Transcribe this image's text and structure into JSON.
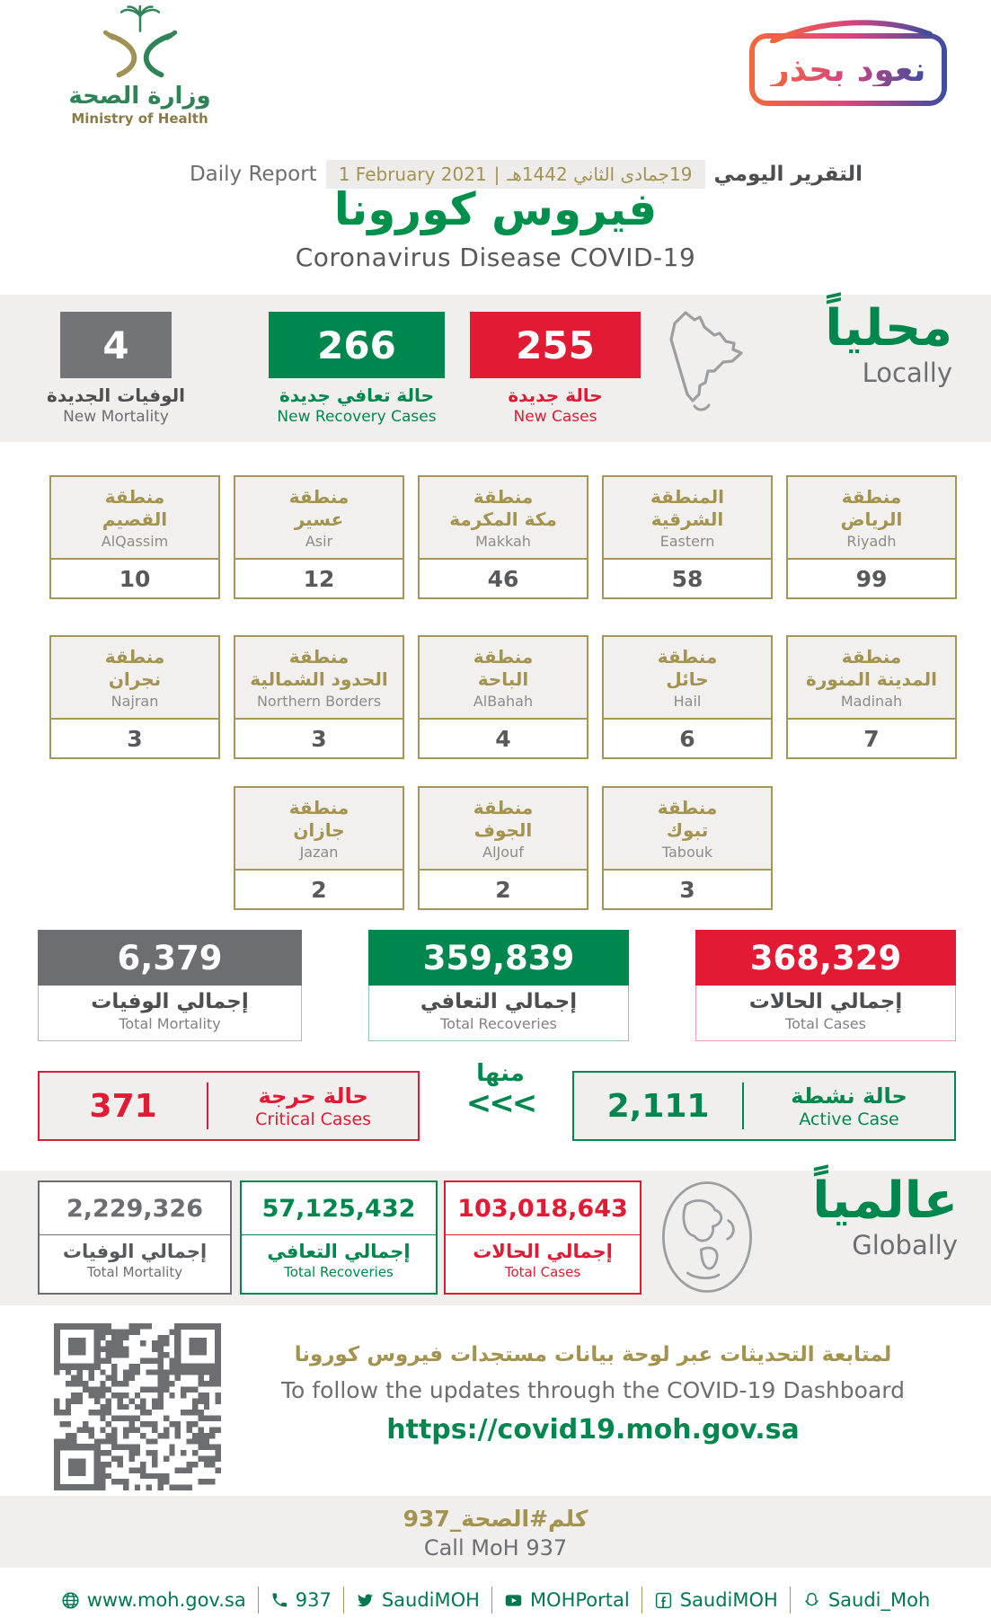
{
  "header": {
    "ministry_name_ar": "وزارة الصحة",
    "ministry_name_en": "Ministry of Health",
    "badge_text": "نعود بحذر",
    "report_label_ar": "التقرير اليومي",
    "report_date_hijri": "19جمادى الثاني 1442هـ",
    "report_date_sep": "|",
    "report_date_greg": "1 February 2021",
    "report_label_en": "Daily Report",
    "title_ar": "فيروس كورونا",
    "title_en": "Coronavirus Disease COVID-19"
  },
  "colors": {
    "green": "#00874e",
    "red": "#e21a33",
    "gray": "#737477",
    "olive": "#a5965a"
  },
  "locally": {
    "heading_ar": "محلياً",
    "heading_en": "Locally",
    "new_mortality": {
      "value": "4",
      "label_ar": "الوفيات الجديدة",
      "label_en": "New Mortality"
    },
    "new_recoveries": {
      "value": "266",
      "label_ar": "حالة تعافي جديدة",
      "label_en": "New Recovery Cases"
    },
    "new_cases": {
      "value": "255",
      "label_ar": "حالة جديدة",
      "label_en": "New Cases"
    }
  },
  "regions": {
    "rows": [
      {
        "cards": [
          {
            "ar1": "منطقة",
            "ar2": "القصيم",
            "en": "AlQassim",
            "value": "10"
          },
          {
            "ar1": "منطقة",
            "ar2": "عسير",
            "en": "Asir",
            "value": "12"
          },
          {
            "ar1": "منطقة",
            "ar2": "مكة المكرمة",
            "en": "Makkah",
            "value": "46"
          },
          {
            "ar1": "المنطقة",
            "ar2": "الشرقية",
            "en": "Eastern",
            "value": "58"
          },
          {
            "ar1": "منطقة",
            "ar2": "الرياض",
            "en": "Riyadh",
            "value": "99"
          }
        ]
      },
      {
        "cards": [
          {
            "ar1": "منطقة",
            "ar2": "نجران",
            "en": "Najran",
            "value": "3"
          },
          {
            "ar1": "منطقة",
            "ar2": "الحدود الشمالية",
            "en": "Northern Borders",
            "value": "3"
          },
          {
            "ar1": "منطقة",
            "ar2": "الباحة",
            "en": "AlBahah",
            "value": "4"
          },
          {
            "ar1": "منطقة",
            "ar2": "حائل",
            "en": "Hail",
            "value": "6"
          },
          {
            "ar1": "منطقة",
            "ar2": "المدينة المنورة",
            "en": "Madinah",
            "value": "7"
          }
        ]
      },
      {
        "cards": [
          {
            "ar1": "منطقة",
            "ar2": "جازان",
            "en": "Jazan",
            "value": "2"
          },
          {
            "ar1": "منطقة",
            "ar2": "الجوف",
            "en": "AlJouf",
            "value": "2"
          },
          {
            "ar1": "منطقة",
            "ar2": "تبوك",
            "en": "Tabouk",
            "value": "3"
          }
        ]
      }
    ]
  },
  "totals_local": {
    "mortality": {
      "value": "6,379",
      "label_ar": "إجمالي الوفيات",
      "label_en": "Total Mortality"
    },
    "recoveries": {
      "value": "359,839",
      "label_ar": "إجمالي التعافي",
      "label_en": "Total Recoveries"
    },
    "cases": {
      "value": "368,329",
      "label_ar": "إجمالي الحالات",
      "label_en": "Total Cases"
    }
  },
  "breakdown": {
    "critical": {
      "value": "371",
      "label_ar": "حالة حرجة",
      "label_en": "Critical Cases"
    },
    "of_which_ar": "منها",
    "arrows": "<<<",
    "active": {
      "value": "2,111",
      "label_ar": "حالة نشطة",
      "label_en": "Active Case"
    }
  },
  "globally": {
    "heading_ar": "عالمياً",
    "heading_en": "Globally",
    "mortality": {
      "value": "2,229,326",
      "label_ar": "إجمالي الوفيات",
      "label_en": "Total Mortality"
    },
    "recoveries": {
      "value": "57,125,432",
      "label_ar": "إجمالي التعافي",
      "label_en": "Total Recoveries"
    },
    "cases": {
      "value": "103,018,643",
      "label_ar": "إجمالي الحالات",
      "label_en": "Total Cases"
    }
  },
  "dashboard": {
    "note_ar": "لمتابعة التحديثات عبر لوحة بيانات مستجدات فيروس كورونا",
    "note_en": "To follow the updates through the COVID-19 Dashboard",
    "url": "https://covid19.moh.gov.sa"
  },
  "call": {
    "hashtag_ar": "كلم#الصحة_937",
    "label_en": "Call MoH 937"
  },
  "footer": {
    "items": [
      {
        "icon": "globe-icon",
        "label": "www.moh.gov.sa"
      },
      {
        "icon": "phone-icon",
        "label": "937"
      },
      {
        "icon": "twitter-icon",
        "label": "SaudiMOH"
      },
      {
        "icon": "youtube-icon",
        "label": "MOHPortal"
      },
      {
        "icon": "facebook-icon",
        "label": "SaudiMOH"
      },
      {
        "icon": "snapchat-icon",
        "label": "Saudi_Moh"
      }
    ]
  }
}
